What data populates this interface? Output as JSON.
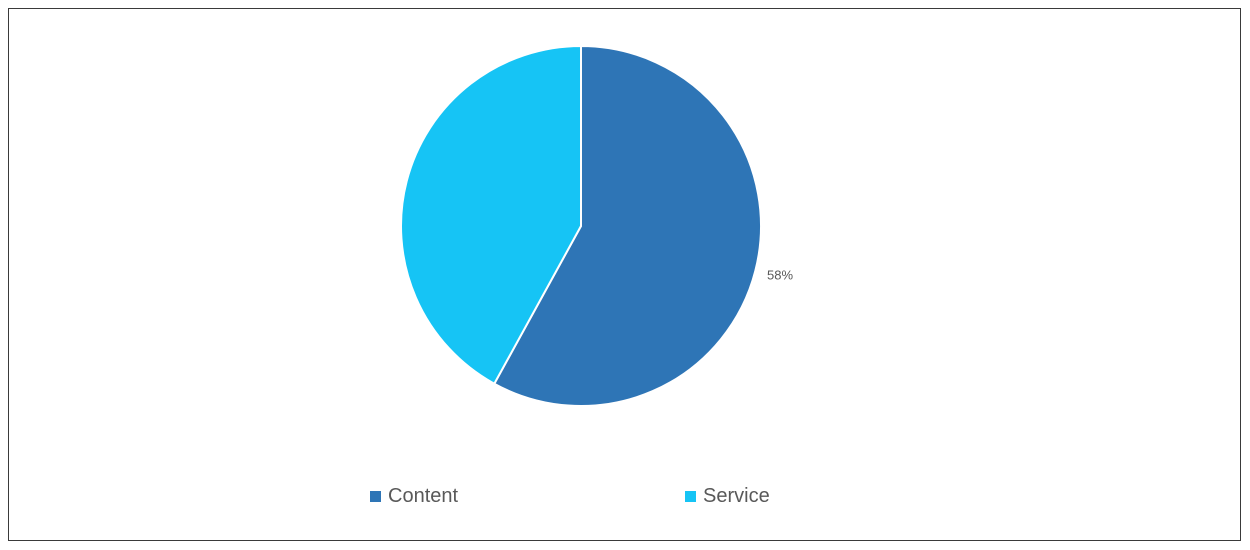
{
  "chart_data": {
    "type": "pie",
    "categories": [
      "Content",
      "Service"
    ],
    "values": [
      58,
      42
    ],
    "data_labels": [
      "58%",
      ""
    ],
    "colors": [
      "#2E75B6",
      "#16C4F5"
    ],
    "legend_position": "bottom",
    "start_angle": "12 o'clock",
    "direction": "clockwise"
  },
  "legend": {
    "items": [
      {
        "label": "Content",
        "color": "#2E75B6"
      },
      {
        "label": "Service",
        "color": "#16C4F5"
      }
    ]
  }
}
